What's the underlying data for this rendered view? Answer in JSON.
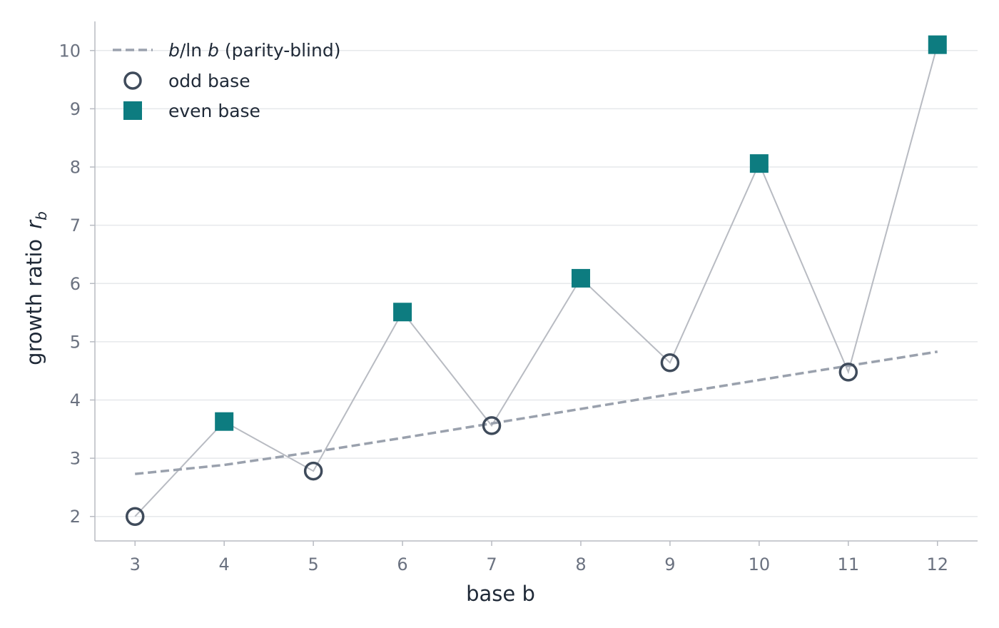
{
  "chart_data": {
    "type": "line",
    "x": [
      3,
      4,
      5,
      6,
      7,
      8,
      9,
      10,
      11,
      12
    ],
    "xlabel": "base  b",
    "ylabel": {
      "main": "growth ratio",
      "var": "r",
      "sub": "b"
    },
    "xlim": [
      2.55,
      12.45
    ],
    "ylim": [
      1.58,
      10.5
    ],
    "xticks": [
      3,
      4,
      5,
      6,
      7,
      8,
      9,
      10,
      11,
      12
    ],
    "yticks": [
      2,
      3,
      4,
      5,
      6,
      7,
      8,
      9,
      10
    ],
    "grid": "horizontal",
    "legend_position": "top-left",
    "series": [
      {
        "name": "b/ln b (parity-blind)",
        "legend_parts": {
          "b1": "b",
          "mid": "/ln ",
          "b2": "b",
          "rest": " (parity-blind)"
        },
        "style": "dashed",
        "color": "#9aa1ad",
        "x": [
          3,
          4,
          5,
          6,
          7,
          8,
          9,
          10,
          11,
          12
        ],
        "values": [
          2.73,
          2.885,
          3.107,
          3.349,
          3.597,
          3.847,
          4.096,
          4.343,
          4.587,
          4.829
        ]
      },
      {
        "name": "odd base",
        "marker": "open-circle",
        "color": "#3f4b5b",
        "x": [
          3,
          5,
          7,
          9,
          11
        ],
        "values": [
          2.0,
          2.78,
          3.56,
          4.64,
          4.48
        ]
      },
      {
        "name": "even base",
        "marker": "filled-square",
        "color": "#0d7c80",
        "x": [
          4,
          6,
          8,
          10,
          12
        ],
        "values": [
          3.63,
          5.51,
          6.09,
          8.06,
          10.1
        ]
      }
    ],
    "connector": {
      "color": "#b8bbc2",
      "x": [
        3,
        4,
        5,
        6,
        7,
        8,
        9,
        10,
        11,
        12
      ],
      "values": [
        2.0,
        3.63,
        2.78,
        5.51,
        3.56,
        6.09,
        4.64,
        8.06,
        4.48,
        10.1
      ]
    },
    "colors": {
      "grid": "#e6e8eb",
      "axis": "#b8bbc2",
      "tick_label": "#6b7280",
      "title": "#1f2937"
    }
  }
}
